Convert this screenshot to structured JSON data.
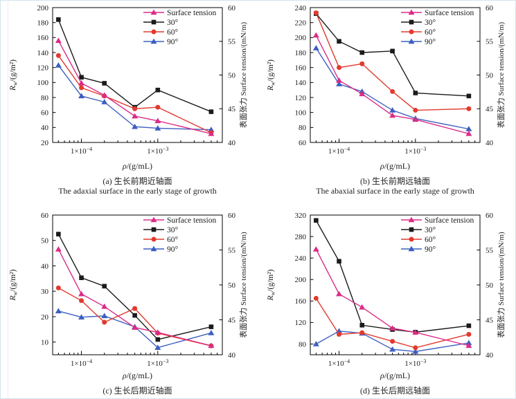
{
  "figure": {
    "border_color": "#d2e4ec",
    "background": "#ffffff"
  },
  "colors": {
    "surface_tension": "#db2b86",
    "deg30": "#1b1b1b",
    "deg60": "#e23a2e",
    "deg90": "#3c5ec1",
    "axis": "#000000",
    "text": "#1a1a1a"
  },
  "series_meta": [
    {
      "id": "surface_tension",
      "label": "Surface tension",
      "color": "#db2b86",
      "marker": "triangle",
      "axis": "right"
    },
    {
      "id": "deg30",
      "label": "30°",
      "color": "#1b1b1b",
      "marker": "square",
      "axis": "left"
    },
    {
      "id": "deg60",
      "label": "60°",
      "color": "#e23a2e",
      "marker": "circle",
      "axis": "left"
    },
    {
      "id": "deg90",
      "label": "90°",
      "color": "#3c5ec1",
      "marker": "triangle",
      "axis": "left"
    }
  ],
  "x_axis": {
    "label": {
      "symbol": "ρ",
      "rest": "/(g/mL)"
    },
    "scale": "log",
    "range": [
      4.2e-05,
      0.007
    ],
    "major_ticks": [
      {
        "value": 0.0001,
        "mantissa": "1×10",
        "exponent": "−4"
      },
      {
        "value": 0.001,
        "mantissa": "1×10",
        "exponent": "−3"
      }
    ],
    "minor_ticks": [
      5e-05,
      6e-05,
      7e-05,
      8e-05,
      9e-05,
      0.0002,
      0.0003,
      0.0004,
      0.0005,
      0.0006,
      0.0007,
      0.0008,
      0.0009,
      0.002,
      0.003,
      0.004,
      0.005,
      0.006
    ]
  },
  "y_left_label": {
    "symbol": "R",
    "sub": "w",
    "rest": "/(g/m²)"
  },
  "y_right": {
    "label": "表面张力 Surface tension/(mN/m)",
    "range": [
      40,
      60
    ],
    "ticks": [
      40,
      45,
      50,
      55,
      60
    ]
  },
  "chart_data": [
    {
      "id": "a",
      "type": "line",
      "row": "top",
      "caption_zh": "(a) 生长前期近轴面",
      "caption_en": "The adaxial surface in the early stage of growth",
      "xlabel": "ρ/(g/mL)",
      "ylabel_left": "Rw/(g/m²)",
      "ylabel_right": "表面张力 Surface tension/(mN/m)",
      "y_left": {
        "range": [
          20,
          200
        ],
        "ticks": [
          20,
          40,
          60,
          80,
          100,
          120,
          140,
          160,
          180,
          200
        ]
      },
      "x": [
        5e-05,
        0.0001,
        0.0002,
        0.0005,
        0.001,
        0.005
      ],
      "values": {
        "deg30": [
          184,
          107,
          99,
          67,
          90,
          61
        ],
        "deg60": [
          136,
          93,
          82,
          65,
          67,
          33
        ],
        "deg90": [
          123,
          82,
          74,
          41,
          39,
          37
        ],
        "surface_tension": [
          55.1,
          48.8,
          47.0,
          43.9,
          43.2,
          41.3
        ]
      }
    },
    {
      "id": "b",
      "type": "line",
      "row": "top",
      "caption_zh": "(b) 生长前期远轴面",
      "caption_en": "The abaxial surface in the early stage of growth",
      "xlabel": "ρ/(g/mL)",
      "ylabel_left": "Rw/(g/m²)",
      "ylabel_right": "表面张力 Surface tension/(mN/m)",
      "y_left": {
        "range": [
          60,
          240
        ],
        "ticks": [
          60,
          80,
          100,
          120,
          140,
          160,
          180,
          200,
          220,
          240
        ]
      },
      "x": [
        5e-05,
        0.0001,
        0.0002,
        0.0005,
        0.001,
        0.005
      ],
      "values": {
        "deg30": [
          232,
          195,
          180,
          182,
          126,
          122
        ],
        "deg60": [
          233,
          160,
          165,
          128,
          103,
          105
        ],
        "deg90": [
          186,
          138,
          128,
          103,
          92,
          78
        ],
        "surface_tension": [
          55.9,
          49.2,
          47.2,
          44.0,
          43.4,
          41.3
        ]
      }
    },
    {
      "id": "c",
      "type": "line",
      "row": "bottom",
      "caption_zh": "(c) 生长后期近轴面",
      "xlabel": "ρ/(g/mL)",
      "ylabel_left": "Rw/(g/m²)",
      "ylabel_right": "表面张力 Surface tension/(mN/m)",
      "y_left": {
        "range": [
          5,
          60
        ],
        "ticks": [
          10,
          20,
          30,
          40,
          50,
          60
        ]
      },
      "x": [
        5e-05,
        0.0001,
        0.0002,
        0.0005,
        0.001,
        0.005
      ],
      "values": {
        "deg30": [
          52.5,
          35.3,
          32,
          20.5,
          11,
          16
        ],
        "deg60": [
          31.3,
          26.3,
          17.8,
          23.2,
          13.5,
          8.5
        ],
        "deg90": [
          22.2,
          19.8,
          20.3,
          16,
          7.8,
          13.6
        ],
        "surface_tension": [
          55.1,
          48.7,
          46.9,
          43.9,
          43.2,
          41.3
        ]
      }
    },
    {
      "id": "d",
      "type": "line",
      "row": "bottom",
      "caption_zh": "(d) 生长后期远轴面",
      "xlabel": "ρ/(g/mL)",
      "ylabel_left": "Rw/(g/m²)",
      "ylabel_right": "表面张力 Surface tension/(mN/m)",
      "y_left": {
        "range": [
          60,
          320
        ],
        "ticks": [
          80,
          120,
          160,
          200,
          240,
          280,
          320
        ]
      },
      "x": [
        5e-05,
        0.0001,
        0.0002,
        0.0005,
        0.001,
        0.005
      ],
      "values": {
        "deg30": [
          310,
          234,
          115,
          107,
          102,
          114
        ],
        "deg60": [
          165,
          98,
          101,
          85,
          73,
          98
        ],
        "deg90": [
          80,
          104,
          100,
          70,
          66,
          82
        ],
        "surface_tension": [
          55.1,
          48.7,
          46.8,
          43.8,
          43.2,
          41.3
        ]
      }
    }
  ]
}
